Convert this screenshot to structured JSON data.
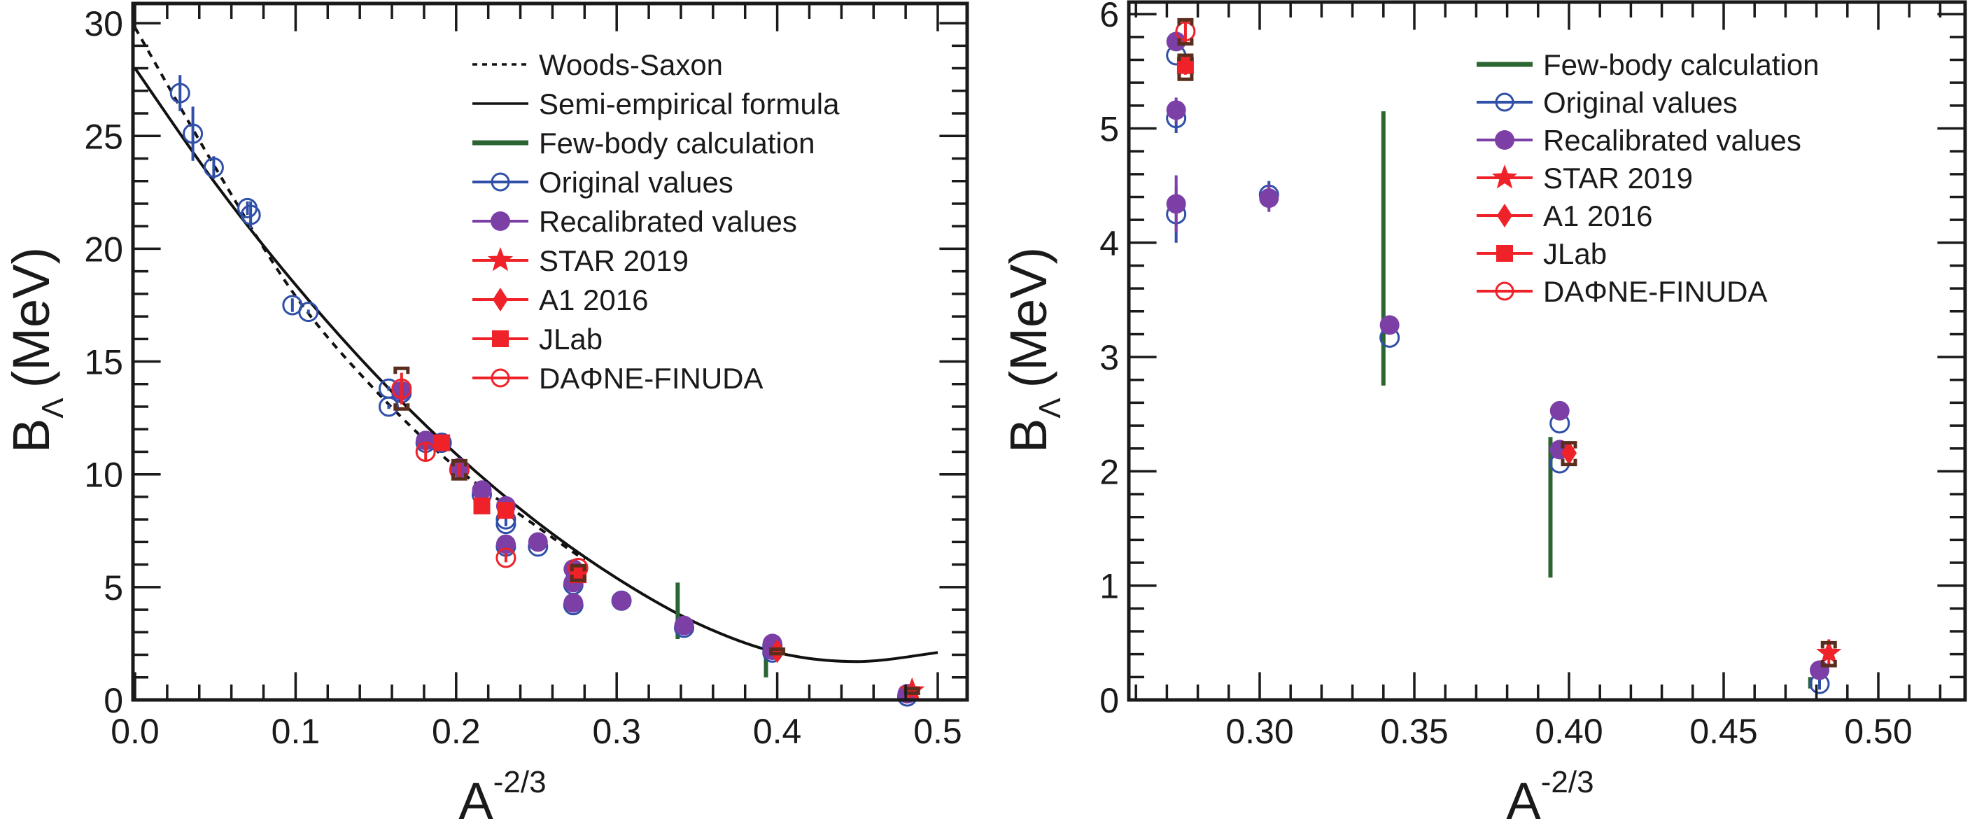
{
  "colors": {
    "original": "#2f4fa8",
    "recalibrated": "#7b3fa6",
    "red": "#ee2228",
    "fewbody": "#2b6532",
    "syst": "#5a2e1e",
    "axis": "#1a1a1a"
  },
  "chart_data": [
    {
      "type": "scatter",
      "panel": "left",
      "title": "",
      "xlabel": "A",
      "xlabel_sup": "-2/3",
      "ylabel": "B",
      "ylabel_sub": "Λ",
      "ylabel_unit": "(MeV)",
      "xlim": [
        0.0,
        0.52
      ],
      "ylim": [
        0,
        31
      ],
      "xticks": [
        0.0,
        0.1,
        0.2,
        0.3,
        0.4,
        0.5
      ],
      "xtick_labels": [
        "0.0",
        "0.1",
        "0.2",
        "0.3",
        "0.4",
        "0.5"
      ],
      "yticks": [
        0,
        5,
        10,
        15,
        20,
        25,
        30
      ],
      "ytick_labels": [
        "0",
        "5",
        "10",
        "15",
        "20",
        "25",
        "30"
      ],
      "legend_position": "top-right",
      "legend": [
        {
          "label": "Woods-Saxon",
          "kind": "dashed-line"
        },
        {
          "label": "Semi-empirical formula",
          "kind": "solid-line"
        },
        {
          "label": "Few-body calculation",
          "kind": "fewbody"
        },
        {
          "label": "Original values",
          "kind": "original"
        },
        {
          "label": "Recalibrated values",
          "kind": "recalibrated"
        },
        {
          "label": "STAR 2019",
          "kind": "star"
        },
        {
          "label": "A1 2016",
          "kind": "diamond"
        },
        {
          "label": "JLab",
          "kind": "square"
        },
        {
          "label": "DAΦNE-FINUDA",
          "kind": "dafne"
        }
      ],
      "curves": {
        "woods_saxon": {
          "x": [
            0.0,
            0.05,
            0.1,
            0.15,
            0.2,
            0.25,
            0.28
          ],
          "y": [
            29.8,
            23.6,
            17.9,
            13.7,
            10.3,
            7.7,
            6.2
          ]
        },
        "semi_empirical": {
          "x": [
            0.0,
            0.05,
            0.1,
            0.15,
            0.2,
            0.25,
            0.3,
            0.35,
            0.4,
            0.45,
            0.5
          ],
          "y": [
            28.0,
            22.9,
            18.4,
            14.4,
            10.9,
            7.9,
            5.4,
            3.4,
            2.1,
            1.7,
            2.1
          ]
        }
      },
      "fewbody": [
        {
          "x": 0.338,
          "ylo": 2.7,
          "yhi": 5.2
        },
        {
          "x": 0.393,
          "ylo": 1.0,
          "yhi": 2.3
        },
        {
          "x": 0.477,
          "ylo": 0.05,
          "yhi": 0.25
        }
      ],
      "original": [
        {
          "x": 0.028,
          "y": 26.9,
          "err": 0.8
        },
        {
          "x": 0.036,
          "y": 25.1,
          "err": 1.2
        },
        {
          "x": 0.049,
          "y": 23.6,
          "err": 0.5
        },
        {
          "x": 0.07,
          "y": 21.8,
          "err": 0.3
        },
        {
          "x": 0.072,
          "y": 21.5,
          "err": 0.6
        },
        {
          "x": 0.098,
          "y": 17.5,
          "err": 0.3
        },
        {
          "x": 0.108,
          "y": 17.2,
          "err": 0.1
        },
        {
          "x": 0.158,
          "y": 13.8,
          "err": 0.1
        },
        {
          "x": 0.158,
          "y": 13.0,
          "err": 0.1
        },
        {
          "x": 0.166,
          "y": 13.6,
          "err": 0.1
        },
        {
          "x": 0.181,
          "y": 11.4,
          "err": 0.1
        },
        {
          "x": 0.191,
          "y": 11.4,
          "err": 0.1
        },
        {
          "x": 0.202,
          "y": 10.2,
          "err": 0.1
        },
        {
          "x": 0.216,
          "y": 9.1,
          "err": 0.1
        },
        {
          "x": 0.231,
          "y": 8.0,
          "err": 0.1
        },
        {
          "x": 0.231,
          "y": 7.8,
          "err": 0.1
        },
        {
          "x": 0.231,
          "y": 6.8,
          "err": 0.1
        },
        {
          "x": 0.251,
          "y": 6.8,
          "err": 0.1
        },
        {
          "x": 0.273,
          "y": 5.1,
          "err": 0.1
        },
        {
          "x": 0.273,
          "y": 4.2,
          "err": 0.1
        },
        {
          "x": 0.303,
          "y": 4.4,
          "err": 0.1
        },
        {
          "x": 0.342,
          "y": 3.2,
          "err": 0.1
        },
        {
          "x": 0.397,
          "y": 2.4,
          "err": 0.1
        },
        {
          "x": 0.397,
          "y": 2.1,
          "err": 0.1
        },
        {
          "x": 0.481,
          "y": 0.15,
          "err": 0.05
        }
      ],
      "recalibrated": [
        {
          "x": 0.166,
          "y": 13.7,
          "err": 0.1
        },
        {
          "x": 0.181,
          "y": 11.5,
          "err": 0.1
        },
        {
          "x": 0.202,
          "y": 10.3,
          "err": 0.1
        },
        {
          "x": 0.216,
          "y": 9.3,
          "err": 0.1
        },
        {
          "x": 0.231,
          "y": 8.6,
          "err": 0.1
        },
        {
          "x": 0.231,
          "y": 6.9,
          "err": 0.1
        },
        {
          "x": 0.251,
          "y": 7.0,
          "err": 0.1
        },
        {
          "x": 0.273,
          "y": 5.8,
          "err": 0.1
        },
        {
          "x": 0.273,
          "y": 5.2,
          "err": 0.1
        },
        {
          "x": 0.273,
          "y": 4.3,
          "err": 0.1
        },
        {
          "x": 0.303,
          "y": 4.4,
          "err": 0.1
        },
        {
          "x": 0.342,
          "y": 3.3,
          "err": 0.1
        },
        {
          "x": 0.397,
          "y": 2.5,
          "err": 0.1
        },
        {
          "x": 0.397,
          "y": 2.2,
          "err": 0.1
        },
        {
          "x": 0.481,
          "y": 0.27,
          "err": 0.05
        }
      ],
      "star": [
        {
          "x": 0.484,
          "y": 0.41,
          "err": 0.12
        }
      ],
      "a1": [
        {
          "x": 0.4,
          "y": 2.16,
          "err": 0.08
        }
      ],
      "jlab": [
        {
          "x": 0.191,
          "y": 11.4,
          "err": 0.1
        },
        {
          "x": 0.216,
          "y": 8.6,
          "err": 0.1
        },
        {
          "x": 0.231,
          "y": 8.4,
          "err": 0.1
        },
        {
          "x": 0.276,
          "y": 5.55,
          "err": 0.1
        }
      ],
      "dafne": [
        {
          "x": 0.166,
          "y": 13.8,
          "err": 0.7
        },
        {
          "x": 0.181,
          "y": 11.0,
          "err": 0.4
        },
        {
          "x": 0.202,
          "y": 10.2,
          "err": 0.3
        },
        {
          "x": 0.231,
          "y": 6.3,
          "err": 0.2
        },
        {
          "x": 0.276,
          "y": 5.85,
          "err": 0.1
        }
      ],
      "syst": [
        {
          "x": 0.166,
          "ylo": 12.9,
          "yhi": 14.7
        },
        {
          "x": 0.202,
          "ylo": 9.8,
          "yhi": 10.6
        },
        {
          "x": 0.276,
          "ylo": 5.3,
          "yhi": 5.95
        },
        {
          "x": 0.4,
          "ylo": 2.05,
          "yhi": 2.25
        },
        {
          "x": 0.484,
          "ylo": 0.3,
          "yhi": 0.5
        }
      ]
    },
    {
      "type": "scatter",
      "panel": "right",
      "title": "",
      "xlabel": "A",
      "xlabel_sup": "-2/3",
      "ylabel": "B",
      "ylabel_sub": "Λ",
      "ylabel_unit": "(MeV)",
      "xlim": [
        0.258,
        0.52
      ],
      "ylim": [
        0,
        6.2
      ],
      "xticks": [
        0.3,
        0.35,
        0.4,
        0.45,
        0.5
      ],
      "xtick_labels": [
        "0.30",
        "0.35",
        "0.40",
        "0.45",
        "0.50"
      ],
      "yticks": [
        0,
        1,
        2,
        3,
        4,
        5,
        6
      ],
      "ytick_labels": [
        "0",
        "1",
        "2",
        "3",
        "4",
        "5",
        "6"
      ],
      "legend_position": "top-right",
      "legend": [
        {
          "label": "Few-body calculation",
          "kind": "fewbody"
        },
        {
          "label": "Original values",
          "kind": "original"
        },
        {
          "label": "Recalibrated values",
          "kind": "recalibrated"
        },
        {
          "label": "STAR 2019",
          "kind": "star"
        },
        {
          "label": "A1 2016",
          "kind": "diamond"
        },
        {
          "label": "JLab",
          "kind": "square"
        },
        {
          "label": "DAΦNE-FINUDA",
          "kind": "dafne"
        }
      ],
      "fewbody": [
        {
          "x": 0.34,
          "ylo": 2.75,
          "yhi": 5.15
        },
        {
          "x": 0.394,
          "ylo": 1.07,
          "yhi": 2.3
        },
        {
          "x": 0.478,
          "ylo": 0.1,
          "yhi": 0.2
        }
      ],
      "original": [
        {
          "x": 0.273,
          "y": 5.64,
          "err": 0.0
        },
        {
          "x": 0.273,
          "y": 5.09,
          "err": 0.13
        },
        {
          "x": 0.273,
          "y": 4.25,
          "err": 0.25
        },
        {
          "x": 0.303,
          "y": 4.42,
          "err": 0.12
        },
        {
          "x": 0.342,
          "y": 3.17,
          "err": 0.0
        },
        {
          "x": 0.397,
          "y": 2.42,
          "err": 0.0
        },
        {
          "x": 0.397,
          "y": 2.07,
          "err": 0.0
        },
        {
          "x": 0.481,
          "y": 0.14,
          "err": 0.05
        }
      ],
      "recalibrated": [
        {
          "x": 0.273,
          "y": 5.76,
          "err": 0.0
        },
        {
          "x": 0.273,
          "y": 5.16,
          "err": 0.11
        },
        {
          "x": 0.273,
          "y": 4.34,
          "err": 0.25
        },
        {
          "x": 0.303,
          "y": 4.39,
          "err": 0.12
        },
        {
          "x": 0.342,
          "y": 3.28,
          "err": 0.0
        },
        {
          "x": 0.397,
          "y": 2.53,
          "err": 0.0
        },
        {
          "x": 0.397,
          "y": 2.19,
          "err": 0.0
        },
        {
          "x": 0.481,
          "y": 0.26,
          "err": 0.05
        }
      ],
      "star": [
        {
          "x": 0.484,
          "y": 0.41,
          "err": 0.12
        }
      ],
      "a1": [
        {
          "x": 0.4,
          "y": 2.16,
          "err": 0.08
        }
      ],
      "jlab": [
        {
          "x": 0.276,
          "y": 5.55,
          "err": 0.08
        }
      ],
      "dafne": [
        {
          "x": 0.276,
          "y": 5.85,
          "err": 0.1
        }
      ],
      "syst": [
        {
          "x": 0.276,
          "ylo": 5.74,
          "yhi": 5.95
        },
        {
          "x": 0.276,
          "ylo": 5.43,
          "yhi": 5.64
        },
        {
          "x": 0.4,
          "ylo": 2.06,
          "yhi": 2.25
        },
        {
          "x": 0.484,
          "ylo": 0.3,
          "yhi": 0.5
        }
      ]
    }
  ]
}
